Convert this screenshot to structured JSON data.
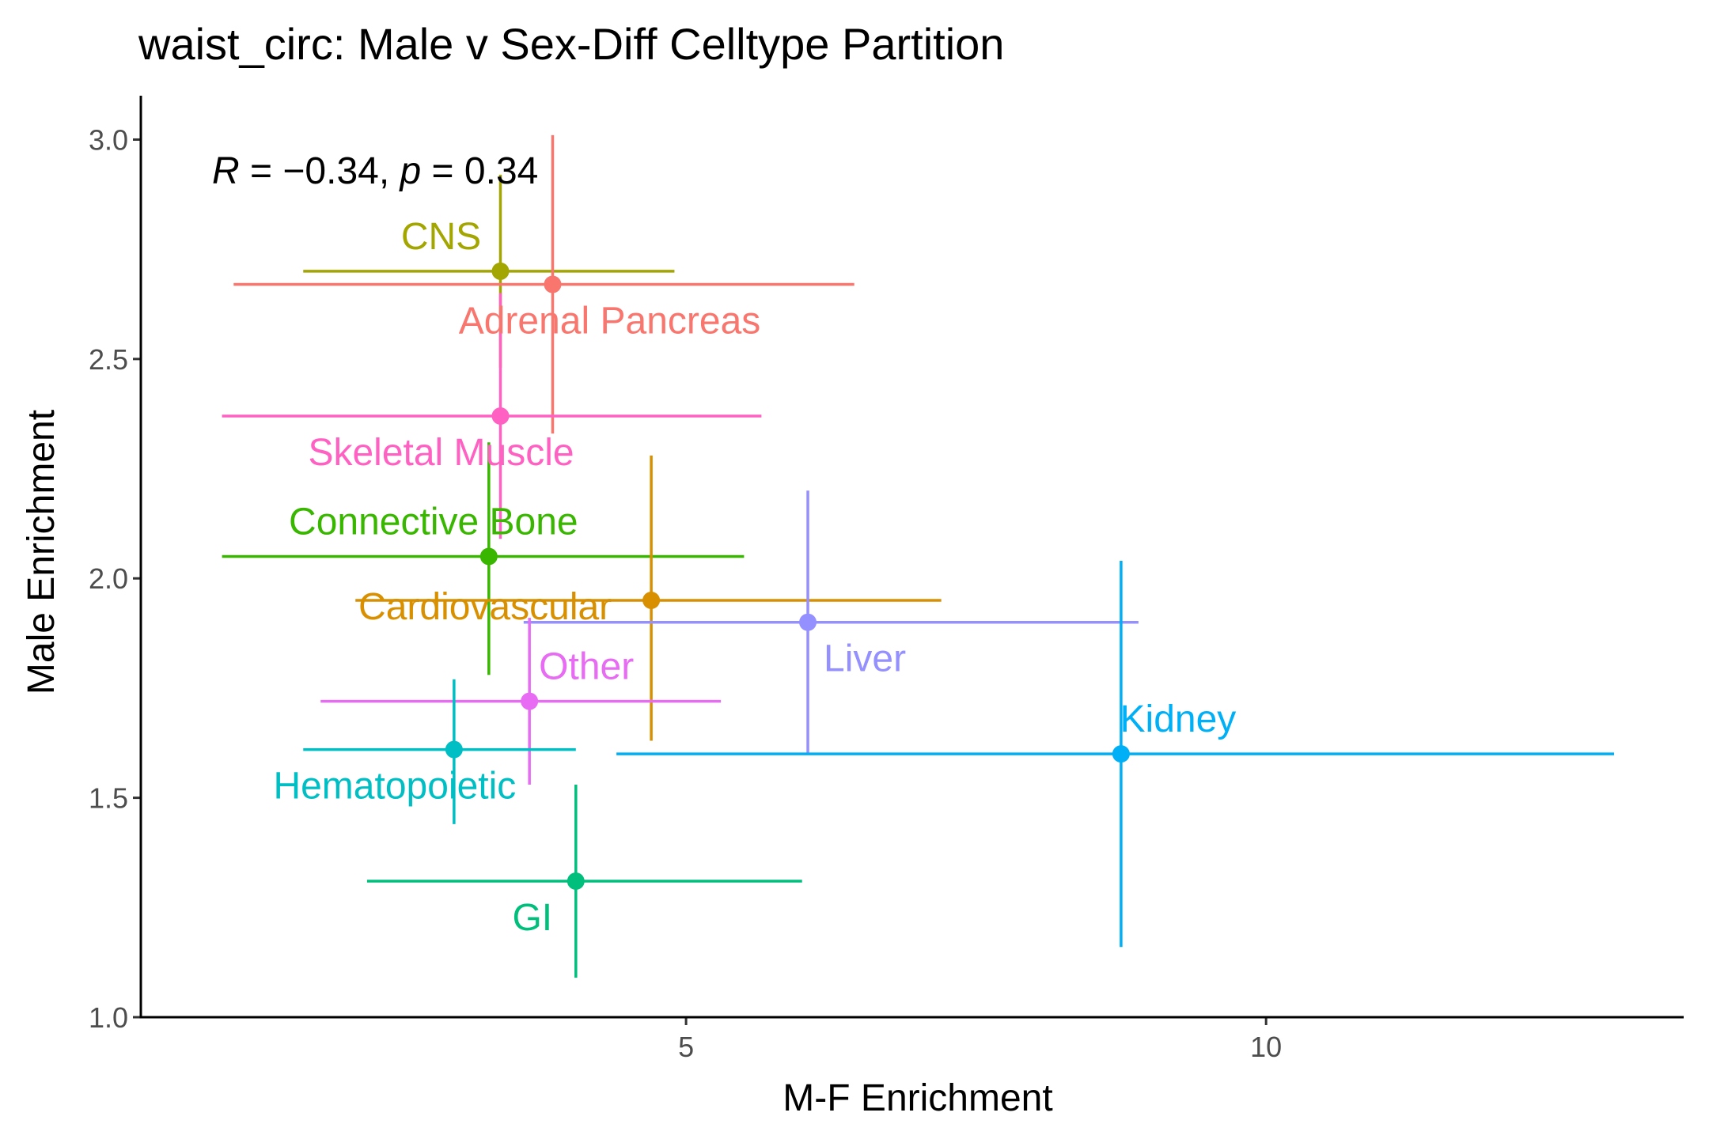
{
  "chart_data": {
    "type": "scatter",
    "title": "waist_circ: Male v Sex-Diff Celltype Partition",
    "xlabel": "M-F Enrichment",
    "ylabel": "Male Enrichment",
    "annotation": {
      "r_label": "R",
      "r_value": " = −0.34, ",
      "p_label": "p",
      "p_value": " = 0.34"
    },
    "xlim": [
      0.3,
      13.6
    ],
    "ylim": [
      1.0,
      3.1
    ],
    "x_ticks": [
      5,
      10
    ],
    "x_tick_labels": [
      "5",
      "10"
    ],
    "y_ticks": [
      1.0,
      1.5,
      2.0,
      2.5,
      3.0
    ],
    "y_tick_labels": [
      "1.0",
      "1.5",
      "2.0",
      "2.5",
      "3.0"
    ],
    "grid": false,
    "legend": "none",
    "points": [
      {
        "label": "CNS",
        "color": "#A3A500",
        "x": 3.4,
        "y": 2.7,
        "xmin": 1.7,
        "xmax": 4.9,
        "ymin": 2.48,
        "ymax": 2.92
      },
      {
        "label": "Adrenal Pancreas",
        "color": "#F8766D",
        "x": 3.85,
        "y": 2.67,
        "xmin": 1.1,
        "xmax": 6.45,
        "ymin": 2.33,
        "ymax": 3.01
      },
      {
        "label": "Skeletal Muscle",
        "color": "#FF61C3",
        "x": 3.4,
        "y": 2.37,
        "xmin": 1.0,
        "xmax": 5.65,
        "ymin": 2.09,
        "ymax": 2.65
      },
      {
        "label": "Connective Bone",
        "color": "#39B600",
        "x": 3.3,
        "y": 2.05,
        "xmin": 1.0,
        "xmax": 5.5,
        "ymin": 1.78,
        "ymax": 2.31
      },
      {
        "label": "Cardiovascular",
        "color": "#D89000",
        "x": 4.7,
        "y": 1.95,
        "xmin": 2.15,
        "xmax": 7.2,
        "ymin": 1.63,
        "ymax": 2.28
      },
      {
        "label": "Liver",
        "color": "#9590FF",
        "x": 6.05,
        "y": 1.9,
        "xmin": 3.6,
        "xmax": 8.9,
        "ymin": 1.6,
        "ymax": 2.2
      },
      {
        "label": "Other",
        "color": "#E76BF3",
        "x": 3.65,
        "y": 1.72,
        "xmin": 1.85,
        "xmax": 5.3,
        "ymin": 1.53,
        "ymax": 1.91
      },
      {
        "label": "Kidney",
        "color": "#00B0F6",
        "x": 8.75,
        "y": 1.6,
        "xmin": 4.4,
        "xmax": 13.0,
        "ymin": 1.16,
        "ymax": 2.04
      },
      {
        "label": "Hematopoietic",
        "color": "#00BFC4",
        "x": 3.0,
        "y": 1.61,
        "xmin": 1.7,
        "xmax": 4.05,
        "ymin": 1.44,
        "ymax": 1.77
      },
      {
        "label": "GI",
        "color": "#00BF7D",
        "x": 4.05,
        "y": 1.31,
        "xmin": 2.25,
        "xmax": 6.0,
        "ymin": 1.09,
        "ymax": 1.53
      }
    ]
  }
}
